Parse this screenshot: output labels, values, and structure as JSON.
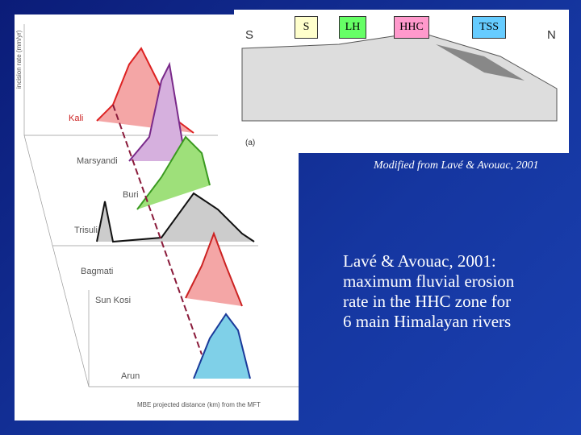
{
  "zone_labels": [
    "S",
    "LH",
    "HHC",
    "TSS"
  ],
  "caption": "Modified from Lavé & Avouac, 2001",
  "body": [
    "Lavé & Avouac, 2001:",
    "maximum fluvial erosion",
    "rate in the HHC zone for",
    "6 main Himalayan rivers"
  ],
  "figure": {
    "rivers": [
      "Kali",
      "Marsyandi",
      "Buri",
      "Trisuli",
      "Bagmati",
      "Sun Kosi",
      "Arun"
    ],
    "x_axis_label": "MBE projected distance (km) from the MFT",
    "y_axis_label": "incision rate (mm/yr)"
  },
  "inset": {
    "south": "S",
    "north": "N",
    "panel": "(a)"
  }
}
